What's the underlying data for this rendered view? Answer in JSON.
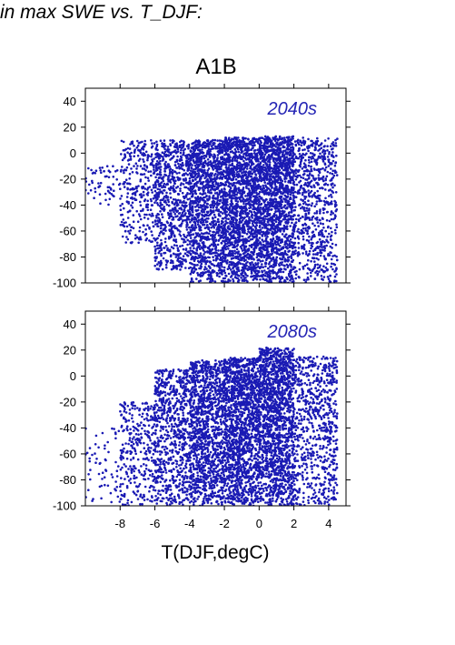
{
  "header": {
    "title": "in max SWE vs. T_DJF:"
  },
  "scenario": {
    "title": "A1B"
  },
  "colors": {
    "points": "#1a1ab4",
    "label": "#2424b4",
    "axis": "#000000"
  },
  "chart_data": [
    {
      "type": "scatter",
      "panel_label": "2040s",
      "xlim": [
        -10,
        5
      ],
      "ylim": [
        -100,
        50
      ],
      "yticks": [
        40,
        20,
        0,
        -20,
        -40,
        -60,
        -80,
        -100
      ],
      "xticks": [
        -8,
        -6,
        -4,
        -2,
        0,
        2,
        4
      ],
      "x_tick_labels_shown": false,
      "xlabel": "",
      "ylabel": "",
      "approx_point_count": 6000,
      "density": [
        {
          "x_range": [
            -10,
            -8
          ],
          "y_range": [
            -40,
            -10
          ],
          "share": 0.01
        },
        {
          "x_range": [
            -8,
            -6
          ],
          "y_range": [
            -70,
            10
          ],
          "share": 0.05
        },
        {
          "x_range": [
            -6,
            -4
          ],
          "y_range": [
            -90,
            10
          ],
          "share": 0.12
        },
        {
          "x_range": [
            -4,
            -2
          ],
          "y_range": [
            -100,
            10
          ],
          "share": 0.2
        },
        {
          "x_range": [
            -2,
            0
          ],
          "y_range": [
            -100,
            12
          ],
          "share": 0.25
        },
        {
          "x_range": [
            0,
            2
          ],
          "y_range": [
            -100,
            13
          ],
          "share": 0.25
        },
        {
          "x_range": [
            2,
            4.5
          ],
          "y_range": [
            -100,
            12
          ],
          "share": 0.12
        }
      ]
    },
    {
      "type": "scatter",
      "panel_label": "2080s",
      "xlim": [
        -10,
        5
      ],
      "ylim": [
        -100,
        50
      ],
      "yticks": [
        40,
        20,
        0,
        -20,
        -40,
        -60,
        -80,
        -100
      ],
      "xticks": [
        -8,
        -6,
        -4,
        -2,
        0,
        2,
        4
      ],
      "x_tick_labels": [
        "-8",
        "-6",
        "-4",
        "-2",
        "0",
        "2",
        "4"
      ],
      "xlabel": "T(DJF,degC)",
      "ylabel": "",
      "approx_point_count": 6000,
      "density": [
        {
          "x_range": [
            -10,
            -8
          ],
          "y_range": [
            -100,
            -40
          ],
          "share": 0.01
        },
        {
          "x_range": [
            -8,
            -6
          ],
          "y_range": [
            -100,
            -20
          ],
          "share": 0.05
        },
        {
          "x_range": [
            -6,
            -4
          ],
          "y_range": [
            -100,
            5
          ],
          "share": 0.12
        },
        {
          "x_range": [
            -4,
            -2
          ],
          "y_range": [
            -100,
            12
          ],
          "share": 0.2
        },
        {
          "x_range": [
            -2,
            0
          ],
          "y_range": [
            -100,
            14
          ],
          "share": 0.25
        },
        {
          "x_range": [
            0,
            2
          ],
          "y_range": [
            -100,
            22
          ],
          "share": 0.25
        },
        {
          "x_range": [
            2,
            4.5
          ],
          "y_range": [
            -100,
            15
          ],
          "share": 0.12
        }
      ]
    }
  ]
}
